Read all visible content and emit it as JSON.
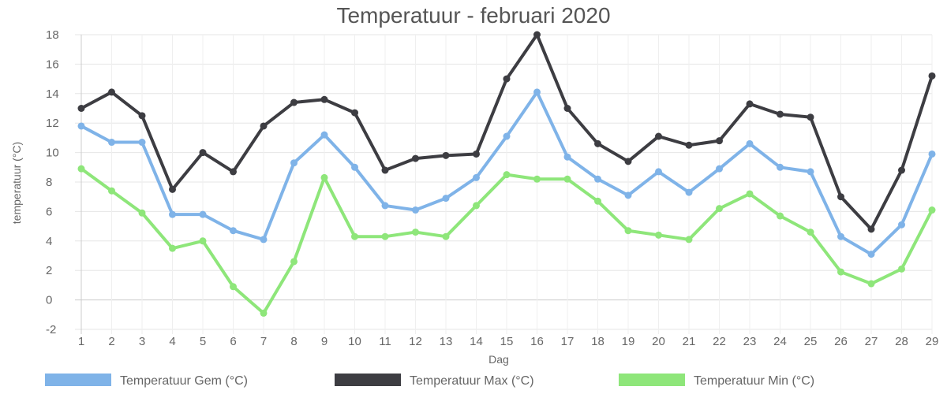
{
  "chart_data": {
    "type": "line",
    "title": "Temperatuur - februari 2020",
    "xlabel": "Dag",
    "ylabel": "temperatuur (°C)",
    "ylim": [
      -2,
      18
    ],
    "y_ticks": [
      -2,
      0,
      2,
      4,
      6,
      8,
      10,
      12,
      14,
      16,
      18
    ],
    "categories": [
      "1",
      "2",
      "3",
      "4",
      "5",
      "6",
      "7",
      "8",
      "9",
      "10",
      "11",
      "12",
      "13",
      "14",
      "15",
      "16",
      "17",
      "18",
      "19",
      "20",
      "21",
      "22",
      "23",
      "24",
      "25",
      "26",
      "27",
      "28",
      "29"
    ],
    "grid": true,
    "legend_position": "bottom",
    "series": [
      {
        "name": "Temperatuur Gem (°C)",
        "color": "#7fb3e8",
        "values": [
          11.8,
          10.7,
          10.7,
          5.8,
          5.8,
          4.7,
          4.1,
          9.3,
          11.2,
          9.0,
          6.4,
          6.1,
          6.9,
          8.3,
          11.1,
          14.1,
          9.7,
          8.2,
          7.1,
          8.7,
          7.3,
          8.9,
          10.6,
          9.0,
          8.7,
          4.3,
          3.1,
          5.1,
          9.9
        ]
      },
      {
        "name": "Temperatuur Max (°C)",
        "color": "#3d3d42",
        "values": [
          13.0,
          14.1,
          12.5,
          7.5,
          10.0,
          8.7,
          11.8,
          13.4,
          13.6,
          12.7,
          8.8,
          9.6,
          9.8,
          9.9,
          15.0,
          18.0,
          13.0,
          10.6,
          9.4,
          11.1,
          10.5,
          10.8,
          13.3,
          12.6,
          12.4,
          7.0,
          4.8,
          8.8,
          15.2
        ]
      },
      {
        "name": "Temperatuur Min (°C)",
        "color": "#8ee67a",
        "values": [
          8.9,
          7.4,
          5.9,
          3.5,
          4.0,
          0.9,
          -0.9,
          2.6,
          8.3,
          4.3,
          4.3,
          4.6,
          4.3,
          6.4,
          8.5,
          8.2,
          8.2,
          6.7,
          4.7,
          4.4,
          4.1,
          6.2,
          7.2,
          5.7,
          4.6,
          1.9,
          1.1,
          2.1,
          6.1
        ]
      }
    ]
  }
}
